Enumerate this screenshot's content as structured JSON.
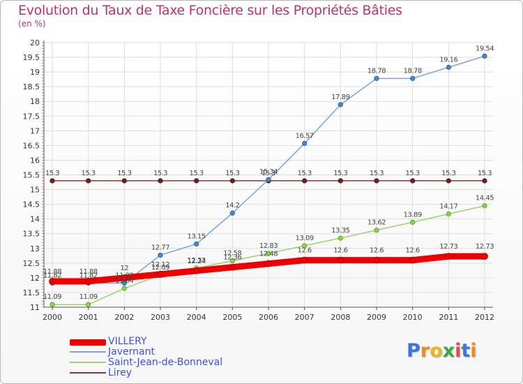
{
  "header": {
    "title": "Evolution du Taux de Taxe Foncière sur les Propriétés Bâties",
    "unit": "(en %)"
  },
  "brand": {
    "name": "Proxiti"
  },
  "colors": {
    "title": "#c0306e",
    "legend_text": "#3a52e0",
    "grid": "#dddddd"
  },
  "chart_data": {
    "type": "line",
    "title": "Evolution du Taux de Taxe Foncière sur les Propriétés Bâties",
    "ylabel": "(en %)",
    "xlabel": "",
    "ylim": [
      11,
      20
    ],
    "grid": true,
    "legend_position": "bottom-left",
    "x": [
      "2000",
      "2001",
      "2002",
      "2003",
      "2004",
      "2005",
      "2006",
      "2007",
      "2008",
      "2009",
      "2010",
      "2011",
      "2012"
    ],
    "yticks": [
      "11",
      "11.5",
      "12",
      "12.5",
      "13",
      "13.5",
      "14",
      "14.5",
      "15",
      "15.5",
      "16",
      "16.5",
      "17",
      "17.5",
      "18",
      "18.5",
      "19",
      "19.5",
      "20"
    ],
    "series": [
      {
        "name": "VILLERY",
        "color": "#ee0000",
        "values": [
          11.88,
          11.88,
          12,
          12.12,
          12.24,
          12.36,
          12.48,
          12.6,
          12.6,
          12.6,
          12.6,
          12.73,
          12.73
        ],
        "labels": [
          "11.88",
          "11.88",
          "12",
          "12.12",
          "12.24",
          "12.36",
          "12.48",
          "12.6",
          "12.6",
          "12.6",
          "12.6",
          "12.73",
          "12.73"
        ]
      },
      {
        "name": "Javernant",
        "color": "#7aa6d4",
        "values": [
          11.82,
          11.82,
          11.82,
          12.77,
          13.15,
          14.2,
          15.34,
          16.57,
          17.89,
          18.78,
          18.78,
          19.16,
          19.54
        ],
        "labels": [
          "11.82",
          "11.82",
          "11.82",
          "12.77",
          "13.15",
          "14.2",
          "15.34",
          "16.57",
          "17.89",
          "18.78",
          "18.78",
          "19.16",
          "19.54"
        ]
      },
      {
        "name": "Saint-Jean-de-Bonneval",
        "color": "#9ad46a",
        "values": [
          11.09,
          11.09,
          11.64,
          12.09,
          12.33,
          12.58,
          12.83,
          13.09,
          13.35,
          13.62,
          13.89,
          14.17,
          14.45
        ],
        "labels": [
          "11.09",
          "11.09",
          "11.64",
          "12.09",
          "12.33",
          "12.58",
          "12.83",
          "13.09",
          "13.35",
          "13.62",
          "13.89",
          "14.17",
          "14.45"
        ]
      },
      {
        "name": "Lirey",
        "color": "#7a3a3a",
        "values": [
          15.3,
          15.3,
          15.3,
          15.3,
          15.3,
          15.3,
          15.3,
          15.3,
          15.3,
          15.3,
          15.3,
          15.3,
          15.3
        ],
        "labels": [
          "15.3",
          "15.3",
          "15.3",
          "15.3",
          "15.3",
          "15.3",
          "15.3",
          "15.3",
          "15.3",
          "15.3",
          "15.3",
          "15.3",
          "15.3"
        ]
      }
    ]
  }
}
